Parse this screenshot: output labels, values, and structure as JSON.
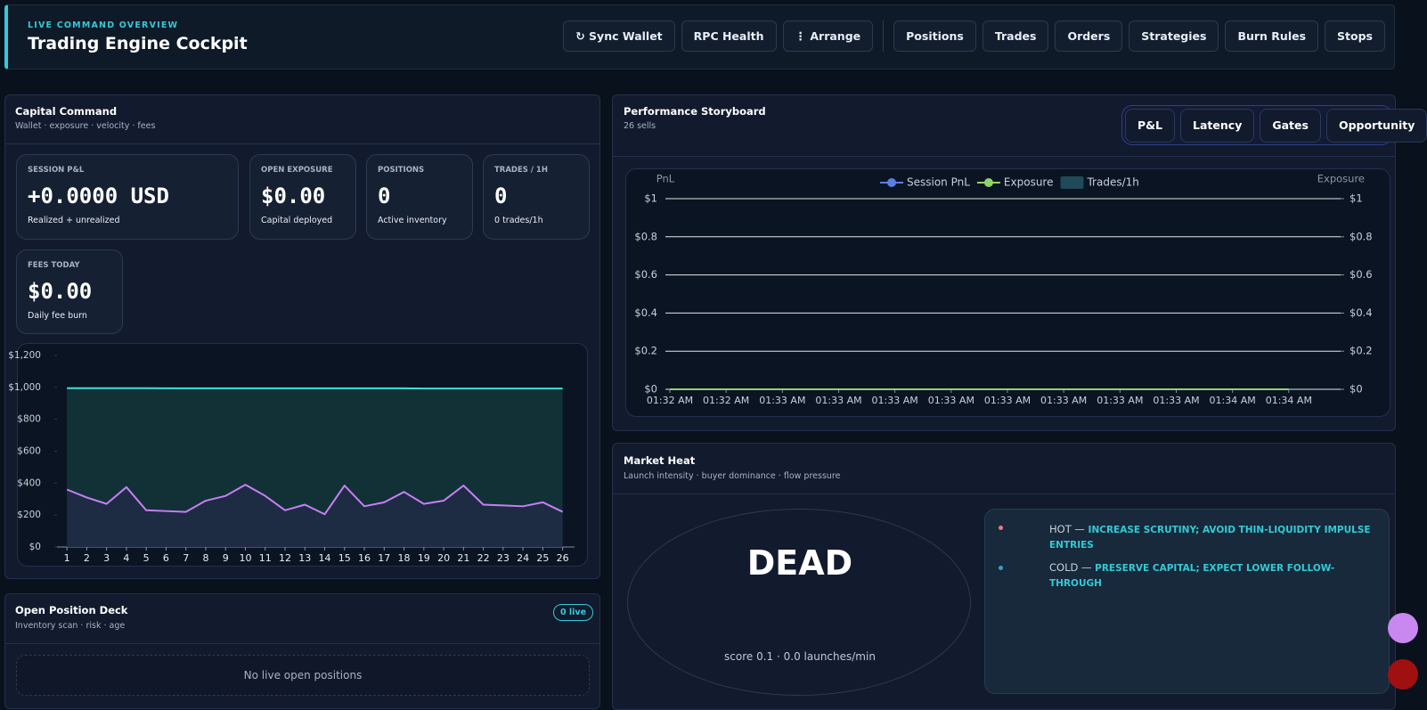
{
  "header": {
    "eyebrow": "LIVE COMMAND OVERVIEW",
    "title": "Trading Engine Cockpit",
    "actions": [
      "↻ Sync Wallet",
      "RPC Health",
      "⋮ Arrange"
    ],
    "nav": [
      "Positions",
      "Trades",
      "Orders",
      "Strategies",
      "Burn Rules",
      "Stops"
    ]
  },
  "capital": {
    "title": "Capital Command",
    "subtitle": "Wallet · exposure · velocity · fees",
    "kpis": [
      {
        "label": "SESSION P&L",
        "value": "+0.0000 USD",
        "note": "Realized + unrealized"
      },
      {
        "label": "OPEN EXPOSURE",
        "value": "$0.00",
        "note": "Capital deployed"
      },
      {
        "label": "POSITIONS",
        "value": "0",
        "note": "Active inventory"
      },
      {
        "label": "TRADES / 1H",
        "value": "0",
        "note": "0 trades/1h"
      },
      {
        "label": "FEES TODAY",
        "value": "$0.00",
        "note": "Daily fee burn"
      }
    ]
  },
  "positions": {
    "title": "Open Position Deck",
    "subtitle": "Inventory scan · risk · age",
    "badge": "0 live",
    "empty": "No live open positions"
  },
  "performance": {
    "title": "Performance Storyboard",
    "subtitle": "26 sells",
    "tabs": [
      "P&L",
      "Latency",
      "Gates",
      "Opportunity"
    ]
  },
  "market_heat": {
    "title": "Market Heat",
    "subtitle": "Launch intensity · buyer dominance · flow pressure",
    "state": "DEAD",
    "score": "score 0.1 · 0.0 launches/min",
    "notes": [
      {
        "level": "HOT —",
        "text": "INCREASE SCRUTINY; AVOID THIN-LIQUIDITY IMPULSE ENTRIES"
      },
      {
        "level": "COLD —",
        "text": "PRESERVE CAPITAL; EXPECT LOWER FOLLOW-THROUGH"
      }
    ]
  },
  "chart_data": [
    {
      "type": "area",
      "x": [
        1,
        2,
        3,
        4,
        5,
        6,
        7,
        8,
        9,
        10,
        11,
        12,
        13,
        14,
        15,
        16,
        17,
        18,
        19,
        20,
        21,
        22,
        23,
        24,
        25,
        26
      ],
      "series": [
        {
          "color": "#3fe0dc",
          "fill": "#12343a",
          "values": [
            995,
            995,
            995,
            995,
            995,
            994,
            994,
            994,
            994,
            994,
            994,
            994,
            994,
            994,
            994,
            994,
            994,
            994,
            993,
            993,
            993,
            993,
            993,
            993,
            993,
            993
          ]
        },
        {
          "color": "#c87ef5",
          "fill": "#1f2b45",
          "values": [
            360,
            310,
            270,
            375,
            230,
            225,
            220,
            290,
            320,
            390,
            320,
            230,
            265,
            205,
            385,
            255,
            280,
            345,
            270,
            290,
            385,
            265,
            260,
            255,
            280,
            220
          ]
        }
      ],
      "xlim": [
        0.5,
        26.6
      ],
      "xticks": [
        1,
        2,
        3,
        4,
        5,
        6,
        7,
        8,
        9,
        10,
        11,
        12,
        13,
        14,
        15,
        16,
        17,
        18,
        19,
        20,
        21,
        22,
        23,
        24,
        25,
        26
      ],
      "ylim": [
        0,
        1200
      ],
      "yticks": [
        {
          "value": 0,
          "label": "$0"
        },
        {
          "value": 200,
          "label": "$200"
        },
        {
          "value": 400,
          "label": "$400"
        },
        {
          "value": 600,
          "label": "$600"
        },
        {
          "value": 800,
          "label": "$800"
        },
        {
          "value": 1000,
          "label": "$1,000"
        },
        {
          "value": 1200,
          "label": "$1,200"
        }
      ]
    },
    {
      "type": "line",
      "y_label": "PnL",
      "y2_label": "Exposure",
      "categories": [
        "01:32 AM",
        "01:32 AM",
        "01:33 AM",
        "01:33 AM",
        "01:33 AM",
        "01:33 AM",
        "01:33 AM",
        "01:33 AM",
        "01:33 AM",
        "01:33 AM",
        "01:34 AM",
        "01:34 AM"
      ],
      "series": [
        {
          "name": "Session PnL",
          "color": "#5b7fe0",
          "values": [
            0,
            0,
            0,
            0,
            0,
            0,
            0,
            0,
            0,
            0,
            0,
            0
          ]
        },
        {
          "name": "Exposure",
          "color": "#8fd46a",
          "axis": "y2",
          "values": [
            0,
            0,
            0,
            0,
            0,
            0,
            0,
            0,
            0,
            0,
            0,
            0
          ]
        },
        {
          "name": "Trades/1h",
          "type": "bar",
          "color": "#1f4a58",
          "values": [
            0,
            0,
            0,
            0,
            0,
            0,
            0,
            0,
            0,
            0,
            0,
            0
          ]
        }
      ],
      "ylim": [
        0,
        1
      ],
      "yticks": [
        {
          "value": 0,
          "label": "$0"
        },
        {
          "value": 0.2,
          "label": "$0.2"
        },
        {
          "value": 0.4,
          "label": "$0.4"
        },
        {
          "value": 0.6,
          "label": "$0.6"
        },
        {
          "value": 0.8,
          "label": "$0.8"
        },
        {
          "value": 1,
          "label": "$1"
        }
      ],
      "y2lim": [
        0,
        1
      ],
      "y2ticks": [
        {
          "value": 0,
          "label": "$0"
        },
        {
          "value": 0.2,
          "label": "$0.2"
        },
        {
          "value": 0.4,
          "label": "$0.4"
        },
        {
          "value": 0.6,
          "label": "$0.6"
        },
        {
          "value": 0.8,
          "label": "$0.8"
        },
        {
          "value": 1,
          "label": "$1"
        }
      ],
      "grid": true
    }
  ]
}
